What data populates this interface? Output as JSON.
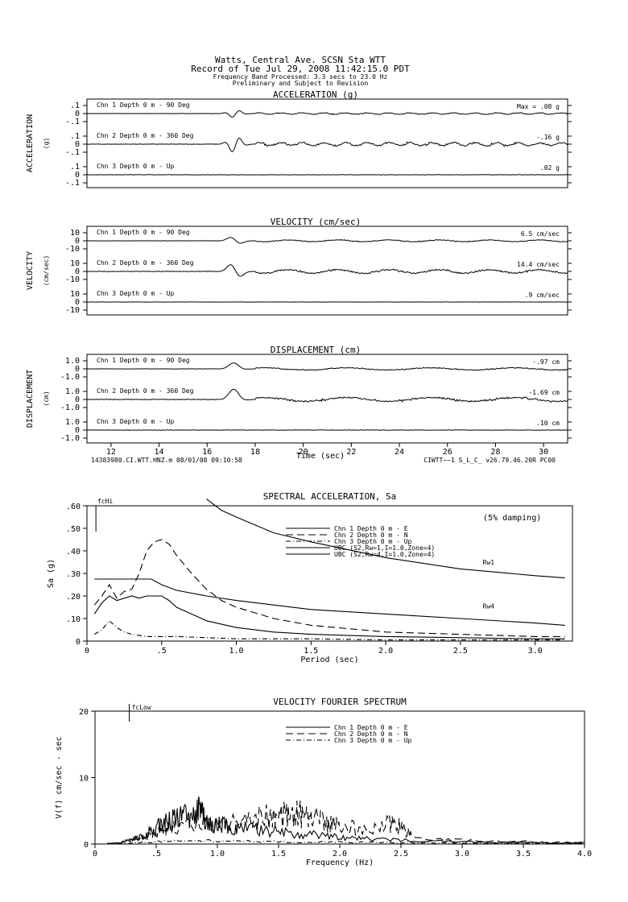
{
  "header": {
    "line1": "Watts, Central Ave.    SCSN Sta WTT",
    "line2": "Record of Tue Jul 29, 2008 11:42:15.0 PDT",
    "line3": "Frequency Band Processed: 3.3 secs to 23.0 Hz",
    "line4": "Preliminary and Subject to Revision"
  },
  "time_panels": [
    {
      "title": "ACCELERATION (g)",
      "ylabel": "ACCELERATION",
      "yunit": "(g)",
      "channels": [
        {
          "label": "Chn 1  Depth   0 m - 90 Deg",
          "max": "Max =  .08   g",
          "ticks": [
            ".1",
            "0",
            "-.1"
          ],
          "amp": 0.35
        },
        {
          "label": "Chn 2  Depth   0 m - 360 Deg",
          "max": "-.16   g",
          "ticks": [
            ".1",
            "0",
            "-.1"
          ],
          "amp": 0.75
        },
        {
          "label": "Chn 3  Depth   0 m - Up",
          "max": ".02   g",
          "ticks": [
            ".1",
            "0",
            "-.1"
          ],
          "amp": 0.06
        }
      ]
    },
    {
      "title": "VELOCITY (cm/sec)",
      "ylabel": "VELOCITY",
      "yunit": "(cm/sec)",
      "channels": [
        {
          "label": "Chn 1  Depth   0 m - 90 Deg",
          "max": "6.5  cm/sec",
          "ticks": [
            "10",
            "0",
            "-10"
          ],
          "amp": 0.45
        },
        {
          "label": "Chn 2  Depth   0 m - 360 Deg",
          "max": "14.4  cm/sec",
          "ticks": [
            "10",
            "0",
            "-10"
          ],
          "amp": 0.9
        },
        {
          "label": "Chn 3  Depth   0 m - Up",
          "max": ".9  cm/sec",
          "ticks": [
            "10",
            "0",
            "-10"
          ],
          "amp": 0.04
        }
      ]
    },
    {
      "title": "DISPLACEMENT (cm)",
      "ylabel": "DISPLACEMENT",
      "yunit": "(cm)",
      "channels": [
        {
          "label": "Chn 1  Depth   0 m - 90 Deg",
          "max": "-.97   cm",
          "ticks": [
            "1.0",
            "0",
            "-1.0"
          ],
          "amp": 0.55
        },
        {
          "label": "Chn 2  Depth   0 m - 360 Deg",
          "max": "-1.69   cm",
          "ticks": [
            "1.0",
            "0",
            "-1.0"
          ],
          "amp": 0.95
        },
        {
          "label": "Chn 3  Depth   0 m - Up",
          "max": ".10   cm",
          "ticks": [
            "1.0",
            "0",
            "-1.0"
          ],
          "amp": 0.06
        }
      ]
    }
  ],
  "time_axis": {
    "xlabel": "Time (sec)",
    "xmin": 11,
    "xmax": 31,
    "ticks": [
      "12",
      "14",
      "16",
      "18",
      "20",
      "22",
      "24",
      "26",
      "28",
      "30"
    ],
    "footer_left": "14383980.CI.WTT.HNZ.m 08/01/08 09:10:58",
    "footer_right": "CIWTT~~1  S_L_C_  v26.79.46.20R PC00"
  },
  "chart_data": [
    {
      "type": "line",
      "title": "SPECTRAL ACCELERATION, Sa",
      "xlabel": "Period (sec)",
      "ylabel": "Sa (g)",
      "xlim": [
        0,
        3.25
      ],
      "ylim": [
        0,
        0.6
      ],
      "x_ticks": [
        "0",
        ".5",
        "1.0",
        "1.5",
        "2.0",
        "2.5",
        "3.0"
      ],
      "y_ticks": [
        "0",
        ".10",
        ".20",
        ".30",
        ".40",
        ".50",
        ".60"
      ],
      "annotations": [
        "fcHi",
        "(5% damping)",
        "Rw1",
        "Rw4"
      ],
      "legend": "top-right",
      "series": [
        {
          "name": "Chn 1  Depth   0 m - E",
          "style": "solid",
          "x": [
            0.05,
            0.1,
            0.15,
            0.2,
            0.25,
            0.3,
            0.35,
            0.4,
            0.45,
            0.5,
            0.55,
            0.6,
            0.7,
            0.8,
            1.0,
            1.25,
            1.5,
            2.0,
            2.5,
            3.0,
            3.2
          ],
          "y": [
            0.12,
            0.17,
            0.2,
            0.18,
            0.19,
            0.2,
            0.19,
            0.2,
            0.2,
            0.2,
            0.18,
            0.15,
            0.12,
            0.09,
            0.06,
            0.04,
            0.03,
            0.02,
            0.015,
            0.01,
            0.01
          ]
        },
        {
          "name": "Chn 2  Depth   0 m - N",
          "style": "dashed",
          "x": [
            0.05,
            0.1,
            0.15,
            0.2,
            0.25,
            0.3,
            0.35,
            0.4,
            0.45,
            0.5,
            0.55,
            0.6,
            0.7,
            0.8,
            0.9,
            1.0,
            1.25,
            1.5,
            2.0,
            2.5,
            3.0,
            3.2
          ],
          "y": [
            0.16,
            0.2,
            0.25,
            0.19,
            0.22,
            0.23,
            0.3,
            0.4,
            0.44,
            0.45,
            0.43,
            0.38,
            0.3,
            0.23,
            0.18,
            0.15,
            0.1,
            0.07,
            0.04,
            0.03,
            0.02,
            0.02
          ]
        },
        {
          "name": "Chn 3  Depth   0 m - Up",
          "style": "dashdot",
          "x": [
            0.05,
            0.1,
            0.15,
            0.2,
            0.25,
            0.3,
            0.4,
            0.5,
            0.6,
            0.8,
            1.0,
            1.5,
            2.0,
            2.5,
            3.0,
            3.2
          ],
          "y": [
            0.03,
            0.05,
            0.09,
            0.06,
            0.04,
            0.03,
            0.02,
            0.02,
            0.02,
            0.015,
            0.01,
            0.01,
            0.005,
            0.005,
            0.005,
            0.005
          ]
        },
        {
          "name": "UBC (S2,Rw=1,I=1.0,Zone=4)",
          "style": "solid",
          "x": [
            0.8,
            0.9,
            1.0,
            1.25,
            1.5,
            2.0,
            2.5,
            3.0,
            3.2
          ],
          "y": [
            0.63,
            0.58,
            0.55,
            0.48,
            0.44,
            0.37,
            0.32,
            0.29,
            0.28
          ]
        },
        {
          "name": "UBC (S2,Rw=4,I=1.0,Zone=4)",
          "style": "solid",
          "x": [
            0.05,
            0.43,
            0.5,
            0.6,
            0.8,
            1.0,
            1.25,
            1.5,
            2.0,
            2.5,
            3.0,
            3.2
          ],
          "y": [
            0.275,
            0.275,
            0.25,
            0.225,
            0.2,
            0.18,
            0.16,
            0.14,
            0.12,
            0.1,
            0.08,
            0.07
          ]
        }
      ]
    },
    {
      "type": "line",
      "title": "VELOCITY FOURIER SPECTRUM",
      "xlabel": "Frequency (Hz)",
      "ylabel": "V(f)   cm/sec - sec",
      "xlim": [
        0,
        4.0
      ],
      "ylim": [
        0,
        20
      ],
      "x_ticks": [
        "0",
        ".5",
        "1.0",
        "1.5",
        "2.0",
        "2.5",
        "3.0",
        "3.5",
        "4.0"
      ],
      "y_ticks": [
        "0",
        "10",
        "20"
      ],
      "annotations": [
        "fcLow"
      ],
      "legend": "top-right",
      "series": [
        {
          "name": "Chn 1  Depth   0 m - E",
          "style": "solid",
          "x": [
            0.1,
            0.2,
            0.3,
            0.4,
            0.5,
            0.6,
            0.7,
            0.8,
            0.85,
            0.9,
            1.0,
            1.1,
            1.2,
            1.4,
            1.6,
            1.8,
            2.0,
            2.2,
            2.5,
            3.0,
            3.5,
            4.0
          ],
          "y": [
            0.1,
            0.3,
            1.0,
            2.0,
            3.5,
            5.0,
            6.0,
            6.5,
            8.0,
            5.0,
            4.5,
            4.0,
            3.5,
            3.0,
            2.5,
            2.0,
            1.5,
            1.2,
            0.8,
            0.5,
            0.3,
            0.3
          ]
        },
        {
          "name": "Chn 2  Depth   0 m - N",
          "style": "dashed",
          "x": [
            0.1,
            0.2,
            0.3,
            0.4,
            0.5,
            0.6,
            0.8,
            1.0,
            1.2,
            1.4,
            1.5,
            1.6,
            1.7,
            1.8,
            1.9,
            2.0,
            2.2,
            2.4,
            2.5,
            2.6,
            3.0,
            3.5,
            4.0
          ],
          "y": [
            0.1,
            0.2,
            0.8,
            1.5,
            2.5,
            3.5,
            4.0,
            4.5,
            5.0,
            6.0,
            6.5,
            7.0,
            6.5,
            6.0,
            5.0,
            4.0,
            3.5,
            4.5,
            4.0,
            1.5,
            0.8,
            0.5,
            0.3
          ]
        },
        {
          "name": "Chn 3  Depth   0 m - Up",
          "style": "dashdot",
          "x": [
            0.1,
            0.3,
            0.5,
            0.8,
            1.0,
            1.5,
            2.0,
            2.5,
            3.0,
            3.5,
            4.0
          ],
          "y": [
            0.05,
            0.2,
            0.5,
            0.8,
            0.6,
            0.5,
            0.4,
            0.3,
            0.2,
            0.15,
            0.1
          ]
        }
      ]
    }
  ]
}
